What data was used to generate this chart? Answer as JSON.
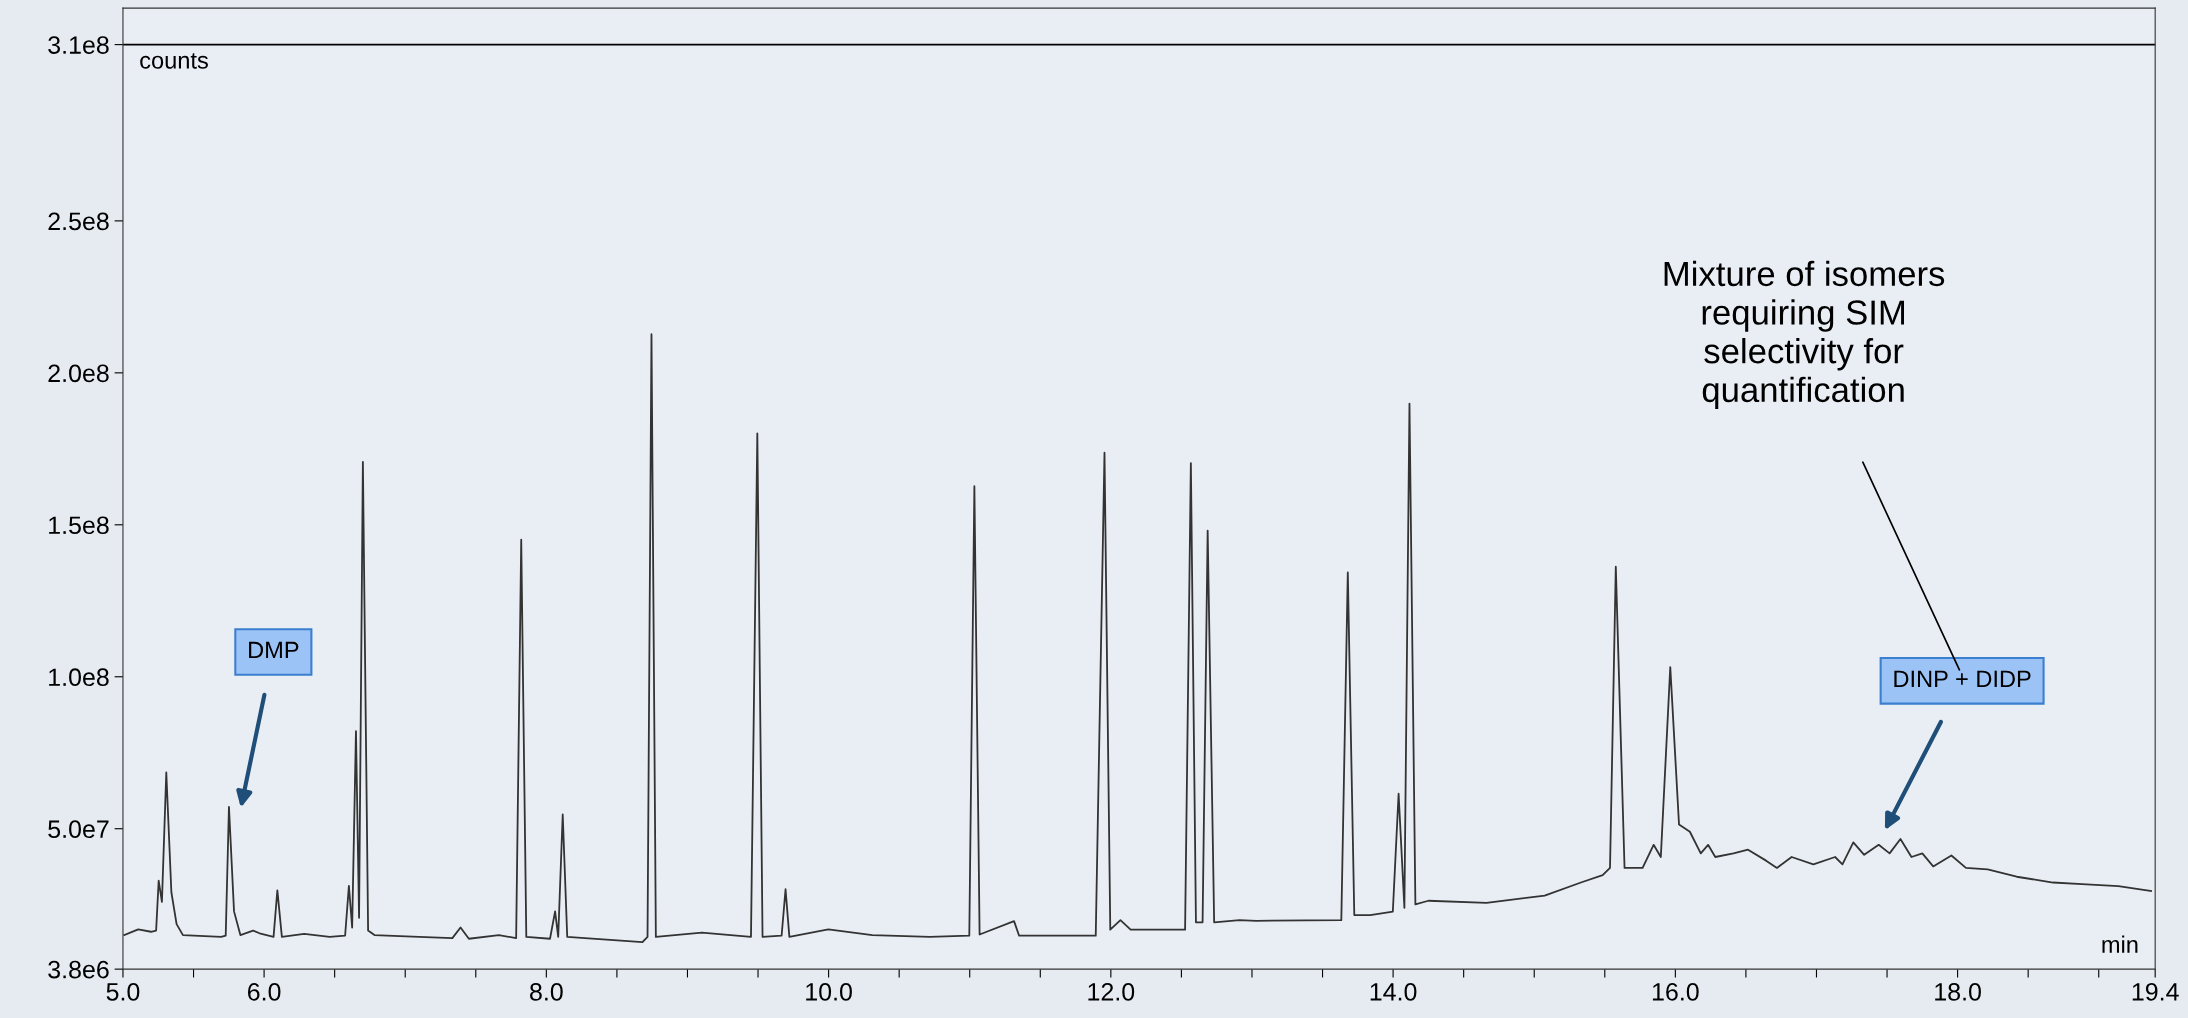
{
  "chart_data": {
    "type": "line",
    "xlabel": "min",
    "ylabel": "counts",
    "x": [
      5.009,
      5.108,
      5.199,
      5.235,
      5.253,
      5.276,
      5.307,
      5.343,
      5.38,
      5.425,
      5.696,
      5.728,
      5.751,
      5.787,
      5.832,
      5.922,
      5.968,
      6.067,
      6.094,
      6.126,
      6.284,
      6.465,
      6.574,
      6.601,
      6.624,
      6.651,
      6.673,
      6.7,
      6.737,
      6.782,
      7.098,
      7.334,
      7.392,
      7.451,
      7.664,
      7.786,
      7.822,
      7.858,
      8.026,
      8.062,
      8.084,
      8.116,
      8.148,
      8.274,
      8.681,
      8.717,
      8.745,
      8.776,
      9.102,
      9.45,
      9.495,
      9.532,
      9.667,
      9.695,
      9.722,
      9.998,
      10.31,
      10.717,
      10.997,
      11.033,
      11.07,
      11.314,
      11.35,
      11.893,
      11.955,
      11.996,
      12.068,
      12.14,
      12.526,
      12.567,
      12.603,
      12.65,
      12.686,
      12.732,
      12.912,
      13.03,
      13.633,
      13.679,
      13.725,
      13.838,
      13.998,
      14.039,
      14.08,
      14.116,
      14.158,
      14.25,
      14.662,
      15.074,
      15.331,
      15.485,
      15.537,
      15.578,
      15.64,
      15.768,
      15.846,
      15.897,
      15.964,
      16.026,
      16.103,
      16.18,
      16.232,
      16.283,
      16.412,
      16.515,
      16.643,
      16.72,
      16.824,
      16.978,
      17.132,
      17.184,
      17.261,
      17.338,
      17.441,
      17.518,
      17.595,
      17.673,
      17.75,
      17.827,
      17.956,
      18.059,
      18.213,
      18.419,
      18.676,
      18.882,
      19.139,
      19.371
    ],
    "series": [
      {
        "color": "#333333",
        "values": [
          15000000.0,
          16900000.0,
          16100000.0,
          16500000.0,
          32900000.0,
          25900000.0,
          68500000.0,
          29100000.0,
          18600000.0,
          15000000.0,
          14400000.0,
          14800000.0,
          57200000.0,
          22800000.0,
          15000000.0,
          16500000.0,
          15600000.0,
          14400000.0,
          29700000.0,
          14400000.0,
          15400000.0,
          14400000.0,
          14800000.0,
          31200000.0,
          17500000.0,
          82100000.0,
          20700000.0,
          170700000.0,
          16500000.0,
          15000000.0,
          14400000.0,
          14000000.0,
          17500000.0,
          13800000.0,
          15000000.0,
          14000000.0,
          145100000.0,
          14400000.0,
          13800000.0,
          22800000.0,
          14400000.0,
          54700000.0,
          14400000.0,
          14000000.0,
          12700000.0,
          14400000.0,
          212700000.0,
          14400000.0,
          15800000.0,
          14400000.0,
          180100000.0,
          14400000.0,
          14800000.0,
          30100000.0,
          14400000.0,
          16900000.0,
          15000000.0,
          14400000.0,
          14800000.0,
          162700000.0,
          15200000.0,
          19600000.0,
          14800000.0,
          14800000.0,
          173700000.0,
          16800000.0,
          19900000.0,
          16800000.0,
          16800000.0,
          170300000.0,
          19200000.0,
          19200000.0,
          148100000.0,
          19200000.0,
          19900000.0,
          19700000.0,
          19900000.0,
          134300000.0,
          21600000.0,
          21600000.0,
          22700000.0,
          61500000.0,
          24000000.0,
          189900000.0,
          25100000.0,
          26300000.0,
          25600000.0,
          28000000.0,
          32300000.0,
          34700000.0,
          37100000.0,
          136200000.0,
          37100000.0,
          37100000.0,
          44700000.0,
          40700000.0,
          103200000.0,
          51400000.0,
          49000000.0,
          41900000.0,
          44700000.0,
          40700000.0,
          41900000.0,
          43100000.0,
          39500000.0,
          37100000.0,
          40700000.0,
          38300000.0,
          40700000.0,
          38300000.0,
          45500000.0,
          41400000.0,
          44700000.0,
          41900000.0,
          46600000.0,
          40700000.0,
          41900000.0,
          37600000.0,
          41200000.0,
          37100000.0,
          36600000.0,
          34200000.0,
          32300000.0,
          31800000.0,
          31100000.0,
          29500000.0
        ]
      }
    ],
    "xlim": [
      5.0,
      19.4
    ],
    "xticks": [
      {
        "value": 5.0,
        "label": "5.0"
      },
      {
        "value": 5.5,
        "label": null
      },
      {
        "value": 6.0,
        "label": "6.0"
      },
      {
        "value": 6.5,
        "label": null
      },
      {
        "value": 7.0,
        "label": null
      },
      {
        "value": 7.5,
        "label": null
      },
      {
        "value": 8.0,
        "label": "8.0"
      },
      {
        "value": 8.5,
        "label": null
      },
      {
        "value": 9.0,
        "label": null
      },
      {
        "value": 9.5,
        "label": null
      },
      {
        "value": 10.0,
        "label": "10.0"
      },
      {
        "value": 10.5,
        "label": null
      },
      {
        "value": 11.0,
        "label": null
      },
      {
        "value": 11.5,
        "label": null
      },
      {
        "value": 12.0,
        "label": "12.0"
      },
      {
        "value": 12.5,
        "label": null
      },
      {
        "value": 13.0,
        "label": null
      },
      {
        "value": 13.5,
        "label": null
      },
      {
        "value": 14.0,
        "label": "14.0"
      },
      {
        "value": 14.5,
        "label": null
      },
      {
        "value": 15.0,
        "label": null
      },
      {
        "value": 15.5,
        "label": null
      },
      {
        "value": 16.0,
        "label": "16.0"
      },
      {
        "value": 16.5,
        "label": null
      },
      {
        "value": 17.0,
        "label": null
      },
      {
        "value": 17.5,
        "label": null
      },
      {
        "value": 18.0,
        "label": "18.0"
      },
      {
        "value": 18.5,
        "label": null
      },
      {
        "value": 19.0,
        "label": null
      },
      {
        "value": 19.4,
        "label": "19.4"
      }
    ],
    "ylim": [
      3800000,
      320000000
    ],
    "yticks": [
      {
        "value": 3800000,
        "label": "3.8e6"
      },
      {
        "value": 50000000,
        "label": "5.0e7"
      },
      {
        "value": 100000000,
        "label": "1.0e8"
      },
      {
        "value": 150000000,
        "label": "1.5e8"
      },
      {
        "value": 200000000,
        "label": "2.0e8"
      },
      {
        "value": 250000000,
        "label": "2.5e8"
      },
      {
        "value": 308000000,
        "label": "3.1e8"
      }
    ],
    "ref_lines": [
      {
        "axis": "y",
        "value": 308000000,
        "color": "#000000"
      }
    ],
    "grid": false,
    "marker": "none",
    "line_style": "solid",
    "annotations": [
      "DMP",
      "DINP + DIDP",
      "Mixture of isomers\nrequiring SIM\nselectivity for\nquantification"
    ]
  }
}
